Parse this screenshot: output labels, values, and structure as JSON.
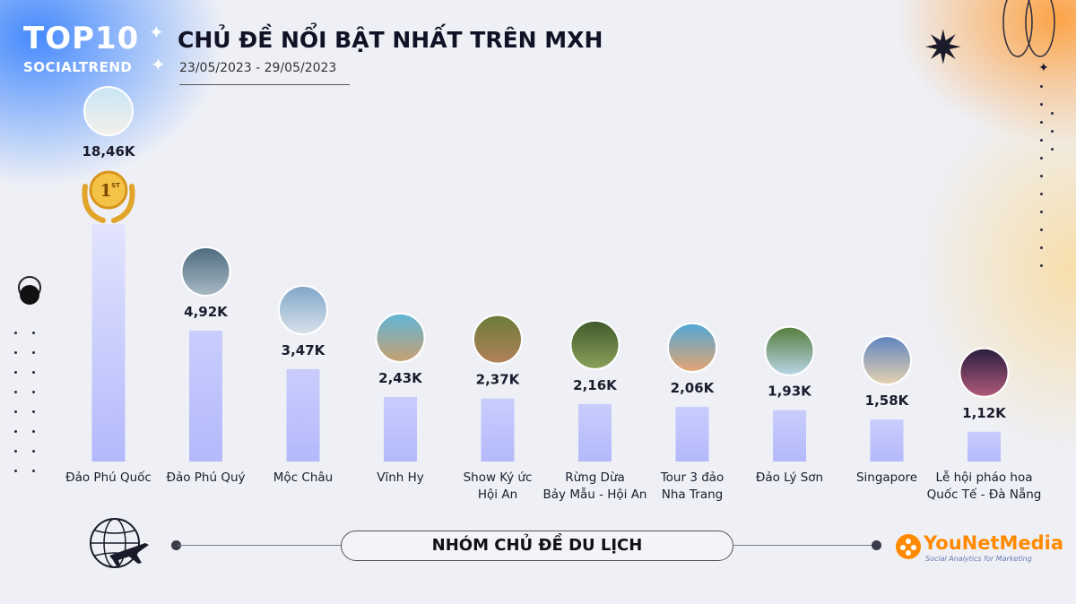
{
  "header": {
    "logo_top": "TOP10",
    "logo_bottom": "SOCIALTREND",
    "title": "CHỦ ĐỀ NỔI BẬT NHẤT TRÊN MXH",
    "date_range": "23/05/2023 - 29/05/2023"
  },
  "rank_badge": "1",
  "rank_badge_sup": "ST",
  "footer": {
    "group_label": "NHÓM CHỦ ĐỀ DU LỊCH",
    "brand_name": "YouNetMedia",
    "brand_tagline": "Social Analytics for Marketing"
  },
  "colors": {
    "bar": "#b3b9fb",
    "bar_top": "#c9cdfc",
    "text": "#1c1c2e"
  },
  "chart_data": {
    "type": "bar",
    "title": "CHỦ ĐỀ NỔI BẬT NHẤT TRÊN MXH",
    "xlabel": "",
    "ylabel": "",
    "categories": [
      [
        "Đảo Phú Quốc"
      ],
      [
        "Đảo Phú Quý"
      ],
      [
        "Mộc Châu"
      ],
      [
        "Vĩnh Hy"
      ],
      [
        "Show Ký ức",
        "Hội An"
      ],
      [
        "Rừng Dừa",
        "Bảy Mẫu - Hội An"
      ],
      [
        "Tour 3 đảo",
        "Nha Trang"
      ],
      [
        "Đảo Lý Sơn"
      ],
      [
        "Singapore"
      ],
      [
        "Lễ hội pháo hoa",
        "Quốc Tế - Đà Nẵng"
      ]
    ],
    "values": [
      18460,
      4920,
      3470,
      2430,
      2370,
      2160,
      2060,
      1930,
      1580,
      1120
    ],
    "value_labels": [
      "18,46K",
      "4,92K",
      "3,47K",
      "2,43K",
      "2,37K",
      "2,16K",
      "2,06K",
      "1,93K",
      "1,58K",
      "1,12K"
    ],
    "grid": false,
    "legend": "none"
  }
}
